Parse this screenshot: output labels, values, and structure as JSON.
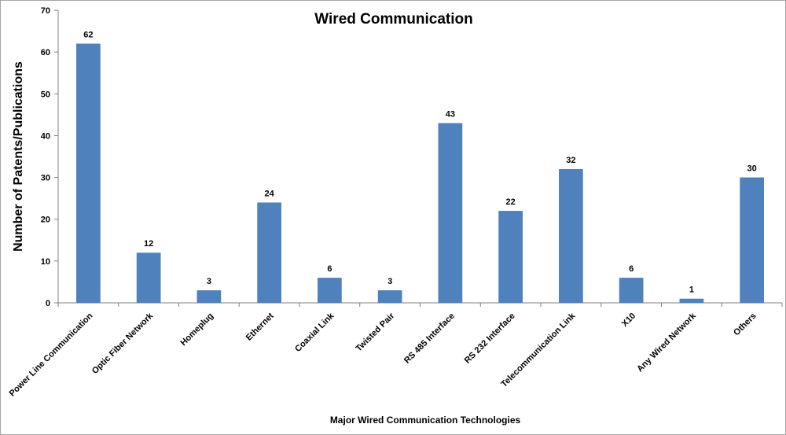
{
  "chart_data": {
    "type": "bar",
    "title": "Wired Communication",
    "xlabel": "Major Wired Communication Technologies",
    "ylabel": "Number of Patents/Publications",
    "ylim": [
      0,
      70
    ],
    "yticks": [
      0,
      10,
      20,
      30,
      40,
      50,
      60,
      70
    ],
    "grid": false,
    "legend": "none",
    "bar_color": "#4f81bd",
    "categories": [
      "Power Line Communication",
      "Optic Fiber Network",
      "Homeplug",
      "Ethernet",
      "Coaxial Link",
      "Twisted Pair",
      "RS 485 Interface",
      "RS 232 Interface",
      "Telecommunication Link",
      "X10",
      "Any Wired Network",
      "Others"
    ],
    "values": [
      62,
      12,
      3,
      24,
      6,
      3,
      43,
      22,
      32,
      6,
      1,
      30
    ],
    "data_labels": true
  }
}
